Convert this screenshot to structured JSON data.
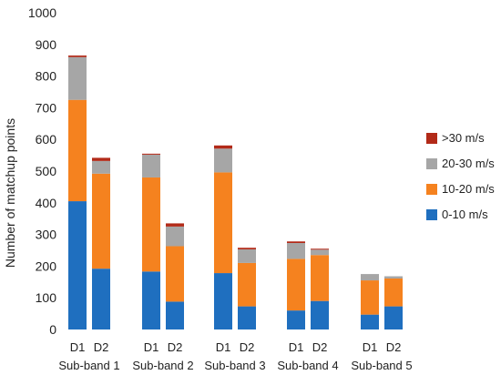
{
  "chart_data": {
    "type": "bar",
    "stacked": true,
    "title": "",
    "xlabel": "",
    "ylabel": "Number of matchup points",
    "ylim": [
      0,
      1000
    ],
    "yticks": [
      0,
      100,
      200,
      300,
      400,
      500,
      600,
      700,
      800,
      900,
      1000
    ],
    "categories": [
      "D1",
      "D2",
      "D1",
      "D2",
      "D1",
      "D2",
      "D1",
      "D2",
      "D1",
      "D2"
    ],
    "groups": [
      "Sub-band 1",
      "Sub-band 2",
      "Sub-band 3",
      "Sub-band 4",
      "Sub-band 5"
    ],
    "series": [
      {
        "name": "0-10 m/s",
        "color": "#1f6fbf",
        "values": [
          405,
          192,
          183,
          88,
          178,
          73,
          60,
          90,
          47,
          73
        ]
      },
      {
        "name": "10-20 m/s",
        "color": "#f5821f",
        "values": [
          320,
          300,
          297,
          175,
          318,
          137,
          163,
          145,
          108,
          88
        ]
      },
      {
        "name": "20-30 m/s",
        "color": "#a6a6a6",
        "values": [
          135,
          40,
          72,
          62,
          75,
          43,
          50,
          17,
          20,
          7
        ]
      },
      {
        "name": ">30 m/s",
        "color": "#b22a18",
        "values": [
          5,
          10,
          3,
          10,
          10,
          5,
          5,
          3,
          0,
          0
        ]
      }
    ],
    "grid": false,
    "legend": "right"
  }
}
